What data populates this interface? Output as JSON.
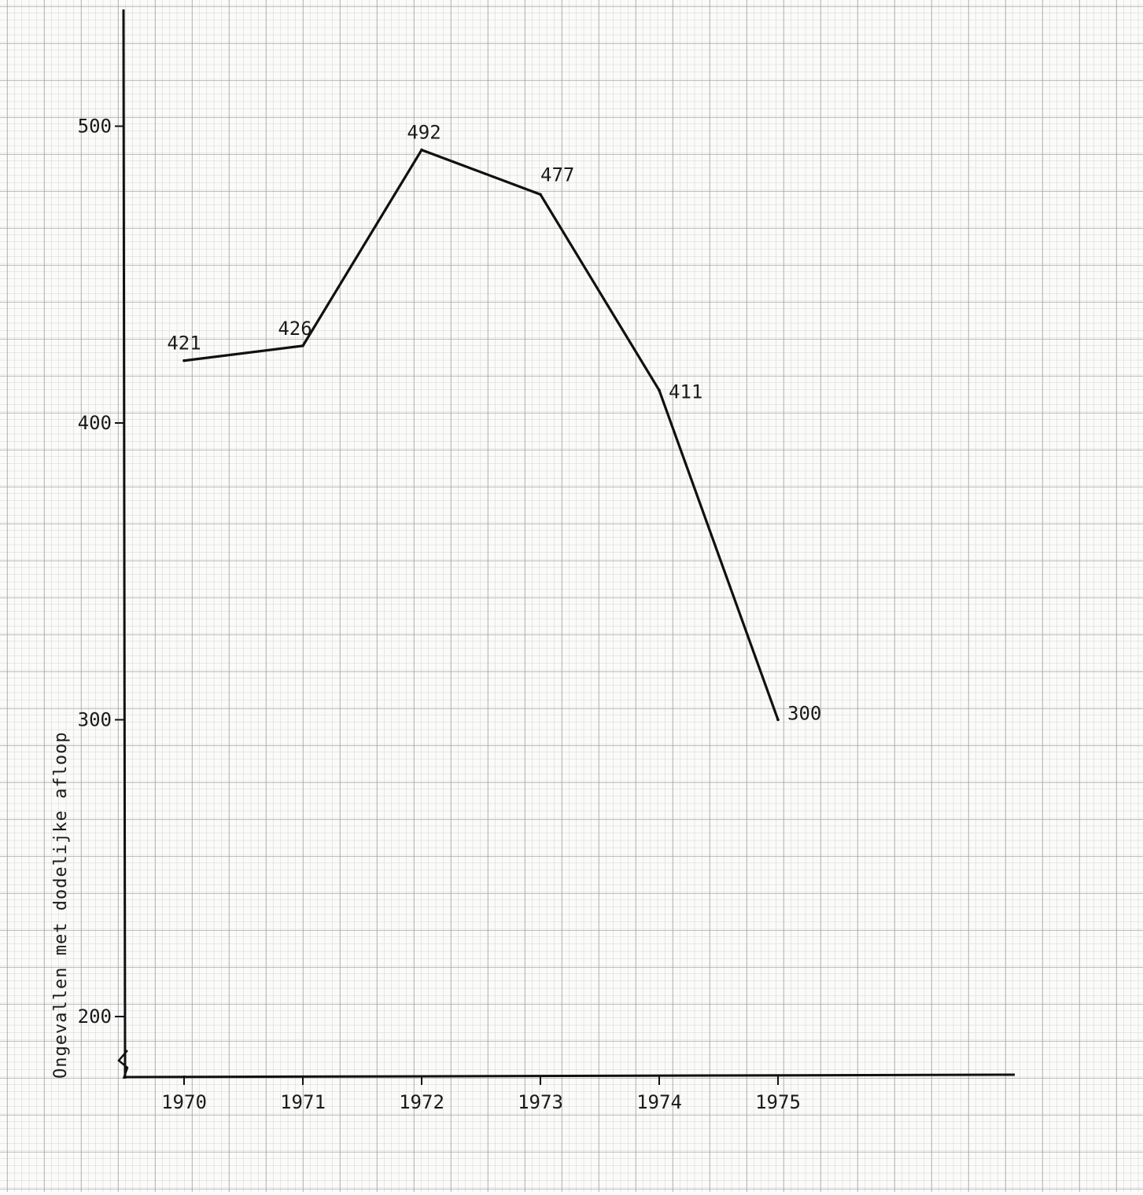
{
  "chart_data": {
    "type": "line",
    "title": "",
    "xlabel": "",
    "ylabel": "Ongevallen met dodelijke afloop",
    "categories": [
      "1970",
      "1971",
      "1972",
      "1973",
      "1974",
      "1975"
    ],
    "series": [
      {
        "values": [
          421,
          426,
          492,
          477,
          411,
          300
        ]
      }
    ],
    "data_labels": [
      "421",
      "426",
      "492",
      "477",
      "411",
      "300"
    ],
    "y_ticks": [
      200,
      300,
      400,
      500
    ],
    "y_tick_labels": [
      "200",
      "300",
      "400",
      "500"
    ],
    "ylim": [
      180,
      540
    ],
    "axis_break": true,
    "grid": true,
    "background": "graph-paper",
    "colors": {
      "line": "#111111",
      "grid_minor": "#c9c9c9",
      "grid_major": "#9d9d9d",
      "paper": "#fbfbfa"
    }
  }
}
